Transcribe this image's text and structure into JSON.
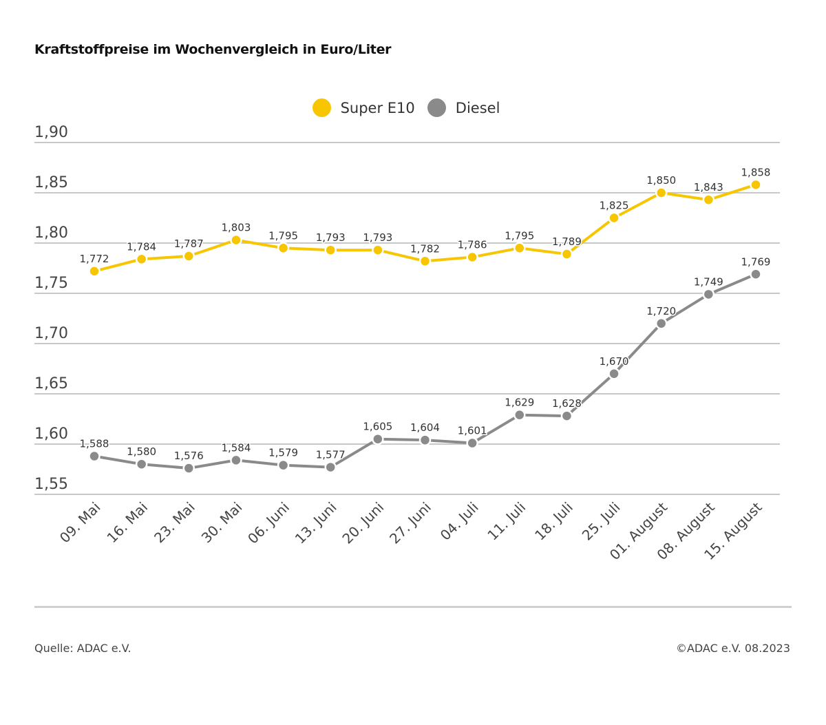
{
  "chart_data": {
    "type": "line",
    "title": "Kraftstoffpreise im Wochenvergleich in Euro/Liter",
    "xlabel": "",
    "ylabel": "",
    "categories": [
      "09. Mai",
      "16. Mai",
      "23. Mai",
      "30. Mai",
      "06. Juni",
      "13. Juni",
      "20. Juni",
      "27. Juni",
      "04. Juli",
      "11. Juli",
      "18. Juli",
      "25. Juli",
      "01. August",
      "08. August",
      "15. August"
    ],
    "series": [
      {
        "name": "Super E10",
        "color": "#f7c600",
        "values": [
          1.772,
          1.784,
          1.787,
          1.803,
          1.795,
          1.793,
          1.793,
          1.782,
          1.786,
          1.795,
          1.789,
          1.825,
          1.85,
          1.843,
          1.858
        ],
        "labels": [
          "1,772",
          "1,784",
          "1,787",
          "1,803",
          "1,795",
          "1,793",
          "1,793",
          "1,782",
          "1,786",
          "1,795",
          "1,789",
          "1,825",
          "1,850",
          "1,843",
          "1,858"
        ]
      },
      {
        "name": "Diesel",
        "color": "#8a8a8a",
        "values": [
          1.588,
          1.58,
          1.576,
          1.584,
          1.579,
          1.577,
          1.605,
          1.604,
          1.601,
          1.629,
          1.628,
          1.67,
          1.72,
          1.749,
          1.769
        ],
        "labels": [
          "1,588",
          "1,580",
          "1,576",
          "1,584",
          "1,579",
          "1,577",
          "1,605",
          "1,604",
          "1,601",
          "1,629",
          "1,628",
          "1,670",
          "1,720",
          "1,749",
          "1,769"
        ]
      }
    ],
    "ylim": [
      1.55,
      1.9
    ],
    "yticks": [
      1.9,
      1.85,
      1.8,
      1.75,
      1.7,
      1.65,
      1.6,
      1.55
    ],
    "ytick_labels": [
      "1,90",
      "1,85",
      "1,80",
      "1,75",
      "1,70",
      "1,65",
      "1,60",
      "1,55"
    ],
    "grid": true,
    "legend": "top-center"
  },
  "footer": {
    "source": "Quelle: ADAC e.V.",
    "copyright": "©ADAC e.V. 08.2023"
  }
}
